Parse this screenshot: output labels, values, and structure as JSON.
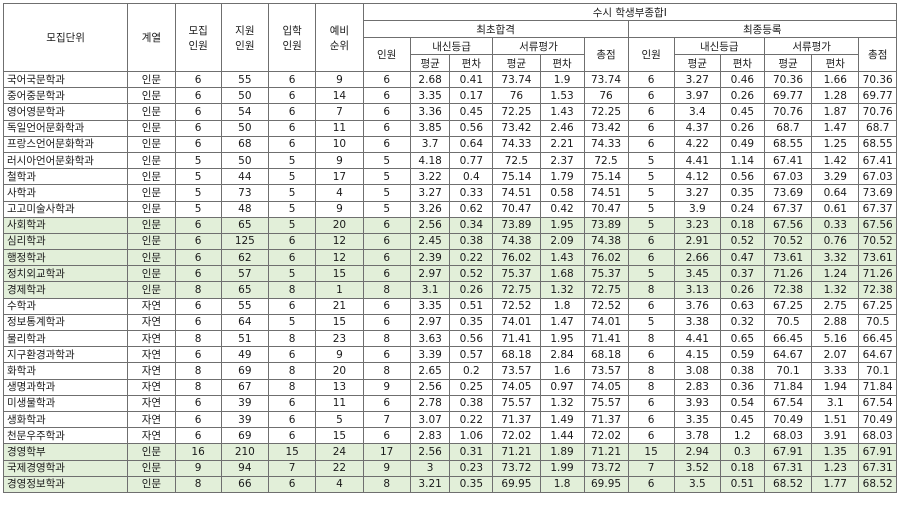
{
  "header": {
    "dept": "모집단위",
    "track": "계열",
    "quota": "모집\n인원",
    "applicants": "지원\n인원",
    "enrolled": "입학\n인원",
    "waitlist": "예비\n순위",
    "program": "수시 학생부종합Ⅰ",
    "first_pass": "최초합격",
    "final_reg": "최종등록",
    "count": "인원",
    "naesin": "내신등급",
    "docs": "서류평가",
    "total": "총점",
    "avg": "평균",
    "dev": "편차"
  },
  "rows": [
    {
      "dept": "국어국문학과",
      "track": "인문",
      "quota": "6",
      "applicants": "55",
      "enrolled": "6",
      "waitlist": "9",
      "fp_n": "6",
      "fp_na": "2.68",
      "fp_nd": "0.41",
      "fp_da": "73.74",
      "fp_dd": "1.9",
      "fp_t": "73.74",
      "fr_n": "6",
      "fr_na": "3.27",
      "fr_nd": "0.46",
      "fr_da": "70.36",
      "fr_dd": "1.66",
      "fr_t": "70.36",
      "hl": false
    },
    {
      "dept": "중어중문학과",
      "track": "인문",
      "quota": "6",
      "applicants": "50",
      "enrolled": "6",
      "waitlist": "14",
      "fp_n": "6",
      "fp_na": "3.35",
      "fp_nd": "0.17",
      "fp_da": "76",
      "fp_dd": "1.53",
      "fp_t": "76",
      "fr_n": "6",
      "fr_na": "3.97",
      "fr_nd": "0.26",
      "fr_da": "69.77",
      "fr_dd": "1.28",
      "fr_t": "69.77",
      "hl": false
    },
    {
      "dept": "영어영문학과",
      "track": "인문",
      "quota": "6",
      "applicants": "54",
      "enrolled": "6",
      "waitlist": "7",
      "fp_n": "6",
      "fp_na": "3.36",
      "fp_nd": "0.45",
      "fp_da": "72.25",
      "fp_dd": "1.43",
      "fp_t": "72.25",
      "fr_n": "6",
      "fr_na": "3.4",
      "fr_nd": "0.45",
      "fr_da": "70.76",
      "fr_dd": "1.87",
      "fr_t": "70.76",
      "hl": false
    },
    {
      "dept": "독일언어문화학과",
      "track": "인문",
      "quota": "6",
      "applicants": "50",
      "enrolled": "6",
      "waitlist": "11",
      "fp_n": "6",
      "fp_na": "3.85",
      "fp_nd": "0.56",
      "fp_da": "73.42",
      "fp_dd": "2.46",
      "fp_t": "73.42",
      "fr_n": "6",
      "fr_na": "4.37",
      "fr_nd": "0.26",
      "fr_da": "68.7",
      "fr_dd": "1.47",
      "fr_t": "68.7",
      "hl": false
    },
    {
      "dept": "프랑스언어문화학과",
      "track": "인문",
      "quota": "6",
      "applicants": "68",
      "enrolled": "6",
      "waitlist": "10",
      "fp_n": "6",
      "fp_na": "3.7",
      "fp_nd": "0.64",
      "fp_da": "74.33",
      "fp_dd": "2.21",
      "fp_t": "74.33",
      "fr_n": "6",
      "fr_na": "4.22",
      "fr_nd": "0.49",
      "fr_da": "68.55",
      "fr_dd": "1.25",
      "fr_t": "68.55",
      "hl": false
    },
    {
      "dept": "러시아언어문화학과",
      "track": "인문",
      "quota": "5",
      "applicants": "50",
      "enrolled": "5",
      "waitlist": "9",
      "fp_n": "5",
      "fp_na": "4.18",
      "fp_nd": "0.77",
      "fp_da": "72.5",
      "fp_dd": "2.37",
      "fp_t": "72.5",
      "fr_n": "5",
      "fr_na": "4.41",
      "fr_nd": "1.14",
      "fr_da": "67.41",
      "fr_dd": "1.42",
      "fr_t": "67.41",
      "hl": false
    },
    {
      "dept": "철학과",
      "track": "인문",
      "quota": "5",
      "applicants": "44",
      "enrolled": "5",
      "waitlist": "17",
      "fp_n": "5",
      "fp_na": "3.22",
      "fp_nd": "0.4",
      "fp_da": "75.14",
      "fp_dd": "1.79",
      "fp_t": "75.14",
      "fr_n": "5",
      "fr_na": "4.12",
      "fr_nd": "0.56",
      "fr_da": "67.03",
      "fr_dd": "3.29",
      "fr_t": "67.03",
      "hl": false
    },
    {
      "dept": "사학과",
      "track": "인문",
      "quota": "5",
      "applicants": "73",
      "enrolled": "5",
      "waitlist": "4",
      "fp_n": "5",
      "fp_na": "3.27",
      "fp_nd": "0.33",
      "fp_da": "74.51",
      "fp_dd": "0.58",
      "fp_t": "74.51",
      "fr_n": "5",
      "fr_na": "3.27",
      "fr_nd": "0.35",
      "fr_da": "73.69",
      "fr_dd": "0.64",
      "fr_t": "73.69",
      "hl": false
    },
    {
      "dept": "고고미술사학과",
      "track": "인문",
      "quota": "5",
      "applicants": "48",
      "enrolled": "5",
      "waitlist": "9",
      "fp_n": "5",
      "fp_na": "3.26",
      "fp_nd": "0.62",
      "fp_da": "70.47",
      "fp_dd": "0.42",
      "fp_t": "70.47",
      "fr_n": "5",
      "fr_na": "3.9",
      "fr_nd": "0.24",
      "fr_da": "67.37",
      "fr_dd": "0.61",
      "fr_t": "67.37",
      "hl": false
    },
    {
      "dept": "사회학과",
      "track": "인문",
      "quota": "6",
      "applicants": "65",
      "enrolled": "5",
      "waitlist": "20",
      "fp_n": "6",
      "fp_na": "2.56",
      "fp_nd": "0.34",
      "fp_da": "73.89",
      "fp_dd": "1.95",
      "fp_t": "73.89",
      "fr_n": "5",
      "fr_na": "3.23",
      "fr_nd": "0.18",
      "fr_da": "67.56",
      "fr_dd": "0.33",
      "fr_t": "67.56",
      "hl": true
    },
    {
      "dept": "심리학과",
      "track": "인문",
      "quota": "6",
      "applicants": "125",
      "enrolled": "6",
      "waitlist": "12",
      "fp_n": "6",
      "fp_na": "2.45",
      "fp_nd": "0.38",
      "fp_da": "74.38",
      "fp_dd": "2.09",
      "fp_t": "74.38",
      "fr_n": "6",
      "fr_na": "2.91",
      "fr_nd": "0.52",
      "fr_da": "70.52",
      "fr_dd": "0.76",
      "fr_t": "70.52",
      "hl": true
    },
    {
      "dept": "행정학과",
      "track": "인문",
      "quota": "6",
      "applicants": "62",
      "enrolled": "6",
      "waitlist": "12",
      "fp_n": "6",
      "fp_na": "2.39",
      "fp_nd": "0.22",
      "fp_da": "76.02",
      "fp_dd": "1.43",
      "fp_t": "76.02",
      "fr_n": "6",
      "fr_na": "2.66",
      "fr_nd": "0.47",
      "fr_da": "73.61",
      "fr_dd": "3.32",
      "fr_t": "73.61",
      "hl": true
    },
    {
      "dept": "정치외교학과",
      "track": "인문",
      "quota": "6",
      "applicants": "57",
      "enrolled": "5",
      "waitlist": "15",
      "fp_n": "6",
      "fp_na": "2.97",
      "fp_nd": "0.52",
      "fp_da": "75.37",
      "fp_dd": "1.68",
      "fp_t": "75.37",
      "fr_n": "5",
      "fr_na": "3.45",
      "fr_nd": "0.37",
      "fr_da": "71.26",
      "fr_dd": "1.24",
      "fr_t": "71.26",
      "hl": true
    },
    {
      "dept": "경제학과",
      "track": "인문",
      "quota": "8",
      "applicants": "65",
      "enrolled": "8",
      "waitlist": "1",
      "fp_n": "8",
      "fp_na": "3.1",
      "fp_nd": "0.26",
      "fp_da": "72.75",
      "fp_dd": "1.32",
      "fp_t": "72.75",
      "fr_n": "8",
      "fr_na": "3.13",
      "fr_nd": "0.26",
      "fr_da": "72.38",
      "fr_dd": "1.32",
      "fr_t": "72.38",
      "hl": true
    },
    {
      "dept": "수학과",
      "track": "자연",
      "quota": "6",
      "applicants": "55",
      "enrolled": "6",
      "waitlist": "21",
      "fp_n": "6",
      "fp_na": "3.35",
      "fp_nd": "0.51",
      "fp_da": "72.52",
      "fp_dd": "1.8",
      "fp_t": "72.52",
      "fr_n": "6",
      "fr_na": "3.76",
      "fr_nd": "0.63",
      "fr_da": "67.25",
      "fr_dd": "2.75",
      "fr_t": "67.25",
      "hl": false
    },
    {
      "dept": "정보통계학과",
      "track": "자연",
      "quota": "6",
      "applicants": "64",
      "enrolled": "5",
      "waitlist": "15",
      "fp_n": "6",
      "fp_na": "2.97",
      "fp_nd": "0.35",
      "fp_da": "74.01",
      "fp_dd": "1.47",
      "fp_t": "74.01",
      "fr_n": "5",
      "fr_na": "3.38",
      "fr_nd": "0.32",
      "fr_da": "70.5",
      "fr_dd": "2.88",
      "fr_t": "70.5",
      "hl": false
    },
    {
      "dept": "물리학과",
      "track": "자연",
      "quota": "8",
      "applicants": "51",
      "enrolled": "8",
      "waitlist": "23",
      "fp_n": "8",
      "fp_na": "3.63",
      "fp_nd": "0.56",
      "fp_da": "71.41",
      "fp_dd": "1.95",
      "fp_t": "71.41",
      "fr_n": "8",
      "fr_na": "4.41",
      "fr_nd": "0.65",
      "fr_da": "66.45",
      "fr_dd": "5.16",
      "fr_t": "66.45",
      "hl": false
    },
    {
      "dept": "지구환경과학과",
      "track": "자연",
      "quota": "6",
      "applicants": "49",
      "enrolled": "6",
      "waitlist": "9",
      "fp_n": "6",
      "fp_na": "3.39",
      "fp_nd": "0.57",
      "fp_da": "68.18",
      "fp_dd": "2.84",
      "fp_t": "68.18",
      "fr_n": "6",
      "fr_na": "4.15",
      "fr_nd": "0.59",
      "fr_da": "64.67",
      "fr_dd": "2.07",
      "fr_t": "64.67",
      "hl": false
    },
    {
      "dept": "화학과",
      "track": "자연",
      "quota": "8",
      "applicants": "69",
      "enrolled": "8",
      "waitlist": "20",
      "fp_n": "8",
      "fp_na": "2.65",
      "fp_nd": "0.2",
      "fp_da": "73.57",
      "fp_dd": "1.6",
      "fp_t": "73.57",
      "fr_n": "8",
      "fr_na": "3.08",
      "fr_nd": "0.38",
      "fr_da": "70.1",
      "fr_dd": "3.33",
      "fr_t": "70.1",
      "hl": false
    },
    {
      "dept": "생명과학과",
      "track": "자연",
      "quota": "8",
      "applicants": "67",
      "enrolled": "8",
      "waitlist": "13",
      "fp_n": "9",
      "fp_na": "2.56",
      "fp_nd": "0.25",
      "fp_da": "74.05",
      "fp_dd": "0.97",
      "fp_t": "74.05",
      "fr_n": "8",
      "fr_na": "2.83",
      "fr_nd": "0.36",
      "fr_da": "71.84",
      "fr_dd": "1.94",
      "fr_t": "71.84",
      "hl": false
    },
    {
      "dept": "미생물학과",
      "track": "자연",
      "quota": "6",
      "applicants": "39",
      "enrolled": "6",
      "waitlist": "11",
      "fp_n": "6",
      "fp_na": "2.78",
      "fp_nd": "0.38",
      "fp_da": "75.57",
      "fp_dd": "1.32",
      "fp_t": "75.57",
      "fr_n": "6",
      "fr_na": "3.93",
      "fr_nd": "0.54",
      "fr_da": "67.54",
      "fr_dd": "3.1",
      "fr_t": "67.54",
      "hl": false
    },
    {
      "dept": "생화학과",
      "track": "자연",
      "quota": "6",
      "applicants": "39",
      "enrolled": "6",
      "waitlist": "5",
      "fp_n": "7",
      "fp_na": "3.07",
      "fp_nd": "0.22",
      "fp_da": "71.37",
      "fp_dd": "1.49",
      "fp_t": "71.37",
      "fr_n": "6",
      "fr_na": "3.35",
      "fr_nd": "0.45",
      "fr_da": "70.49",
      "fr_dd": "1.51",
      "fr_t": "70.49",
      "hl": false
    },
    {
      "dept": "천문우주학과",
      "track": "자연",
      "quota": "6",
      "applicants": "69",
      "enrolled": "6",
      "waitlist": "15",
      "fp_n": "6",
      "fp_na": "2.83",
      "fp_nd": "1.06",
      "fp_da": "72.02",
      "fp_dd": "1.44",
      "fp_t": "72.02",
      "fr_n": "6",
      "fr_na": "3.78",
      "fr_nd": "1.2",
      "fr_da": "68.03",
      "fr_dd": "3.91",
      "fr_t": "68.03",
      "hl": false
    },
    {
      "dept": "경영학부",
      "track": "인문",
      "quota": "16",
      "applicants": "210",
      "enrolled": "15",
      "waitlist": "24",
      "fp_n": "17",
      "fp_na": "2.56",
      "fp_nd": "0.31",
      "fp_da": "71.21",
      "fp_dd": "1.89",
      "fp_t": "71.21",
      "fr_n": "15",
      "fr_na": "2.94",
      "fr_nd": "0.3",
      "fr_da": "67.91",
      "fr_dd": "1.35",
      "fr_t": "67.91",
      "hl": true
    },
    {
      "dept": "국제경영학과",
      "track": "인문",
      "quota": "9",
      "applicants": "94",
      "enrolled": "7",
      "waitlist": "22",
      "fp_n": "9",
      "fp_na": "3",
      "fp_nd": "0.23",
      "fp_da": "73.72",
      "fp_dd": "1.99",
      "fp_t": "73.72",
      "fr_n": "7",
      "fr_na": "3.52",
      "fr_nd": "0.18",
      "fr_da": "67.31",
      "fr_dd": "1.23",
      "fr_t": "67.31",
      "hl": true
    },
    {
      "dept": "경영정보학과",
      "track": "인문",
      "quota": "8",
      "applicants": "66",
      "enrolled": "6",
      "waitlist": "4",
      "fp_n": "8",
      "fp_na": "3.21",
      "fp_nd": "0.35",
      "fp_da": "69.95",
      "fp_dd": "1.8",
      "fp_t": "69.95",
      "fr_n": "6",
      "fr_na": "3.5",
      "fr_nd": "0.51",
      "fr_da": "68.52",
      "fr_dd": "1.77",
      "fr_t": "68.52",
      "hl": true
    }
  ]
}
